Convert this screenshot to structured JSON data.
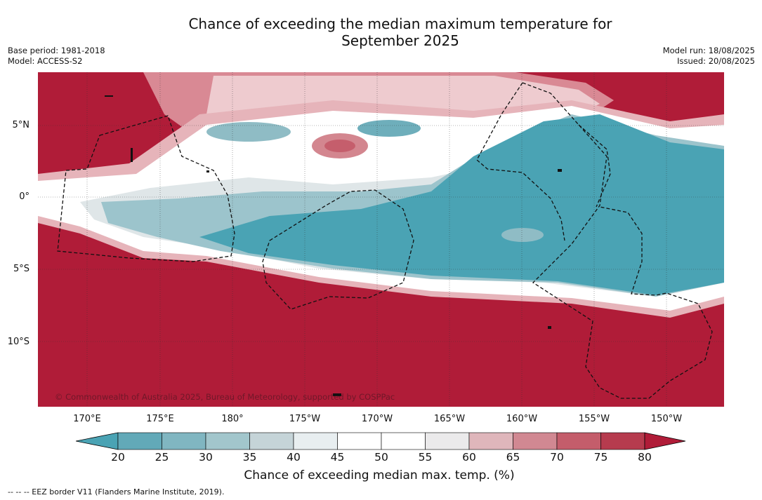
{
  "title_line1": "Chance of exceeding the median maximum temperature for",
  "title_line2": "September 2025",
  "meta_left": {
    "base_period": "Base period: 1981-2018",
    "model": "Model: ACCESS-S2"
  },
  "meta_right": {
    "model_run": "Model run: 18/08/2025",
    "issued": "Issued: 20/08/2025"
  },
  "lat_labels": [
    "5°N",
    "0°",
    "5°S",
    "10°S"
  ],
  "lon_labels": [
    "170°E",
    "175°E",
    "180°",
    "175°W",
    "170°W",
    "165°W",
    "160°W",
    "155°W",
    "150°W"
  ],
  "copyright": "© Commonwealth of Australia 2025, Bureau of Meteorology, supported by COSPPac",
  "colorbar": {
    "ticks": [
      "20",
      "25",
      "30",
      "35",
      "40",
      "45",
      "50",
      "55",
      "60",
      "65",
      "70",
      "75",
      "80"
    ],
    "colors": [
      "#5aa5b4",
      "#6eaebb",
      "#8fbcc5",
      "#adcbd0",
      "#c9d8dc",
      "#e4ecee",
      "#ffffff",
      "#ffffff",
      "#ececec",
      "#e0b8bd",
      "#d3868f",
      "#c55e6c",
      "#b8394c"
    ],
    "below_color": "#4aa3b4",
    "above_color": "#b01c38",
    "label": "Chance of exceeding median max. temp. (%)"
  },
  "footnote": "--  --  -- EEZ border V11 (Flanders Marine Institute, 2019)."
}
